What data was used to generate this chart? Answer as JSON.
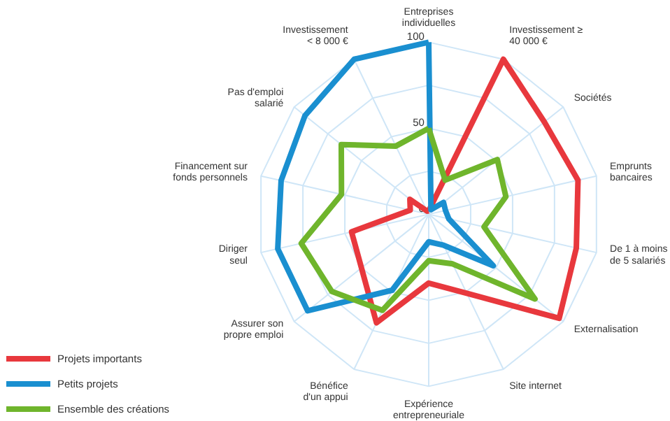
{
  "chart_data": {
    "type": "radar",
    "categories": [
      "Entreprises\nindividuelles",
      "Investissement ≥\n40 000 €",
      "Sociétés",
      "Emprunts\nbancaires",
      "De 1 à moins\nde 5 salariés",
      "Externalisation",
      "Site internet",
      "Expérience\nentrepreneuriale",
      "Bénéfice\nd'un appui",
      "Assurer son\npropre emploi",
      "Diriger\nseul",
      "Financement sur\nfonds personnels",
      "Pas d'emploi\nsalarié",
      "Investissement\n< 8 000 €"
    ],
    "series": [
      {
        "name": "Projets importants",
        "color": "#e8383d",
        "values": [
          2,
          100,
          86,
          89,
          88,
          97,
          51,
          40,
          70,
          50,
          46,
          11,
          14,
          2
        ]
      },
      {
        "name": "Petits projets",
        "color": "#1a8fd0",
        "values": [
          100,
          3,
          11,
          10,
          12,
          48,
          20,
          16,
          49,
          90,
          90,
          88,
          92,
          100
        ]
      },
      {
        "name": "Ensemble des créations",
        "color": "#6fb52c",
        "values": [
          50,
          22,
          51,
          46,
          33,
          79,
          32,
          27,
          62,
          72,
          76,
          52,
          65,
          44
        ]
      }
    ],
    "ylim": [
      0,
      100
    ],
    "yticks": [
      0,
      50,
      100
    ],
    "grid": true,
    "legend": "bottom left"
  }
}
